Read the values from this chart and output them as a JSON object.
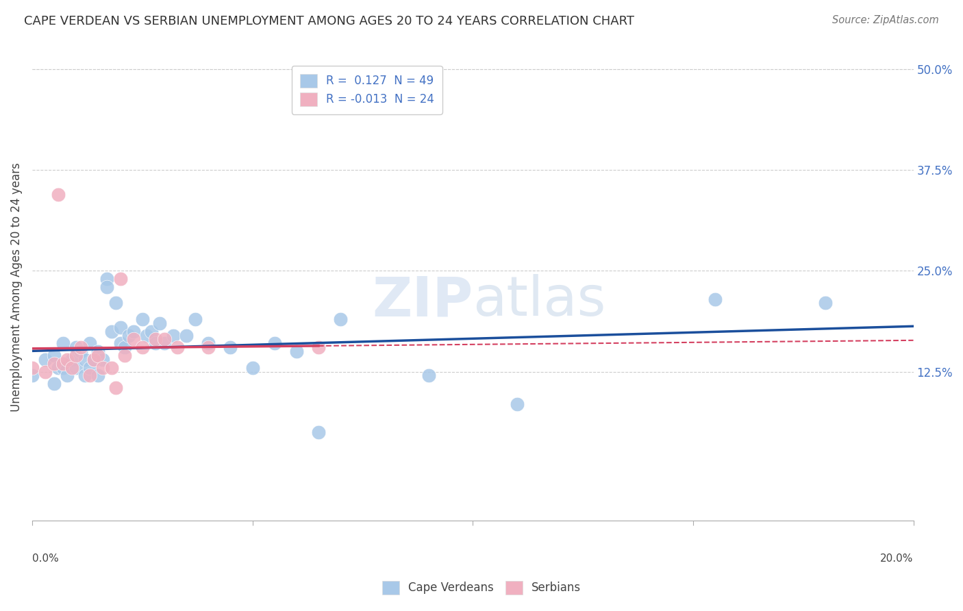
{
  "title": "CAPE VERDEAN VS SERBIAN UNEMPLOYMENT AMONG AGES 20 TO 24 YEARS CORRELATION CHART",
  "source": "Source: ZipAtlas.com",
  "ylabel": "Unemployment Among Ages 20 to 24 years",
  "xmin": 0.0,
  "xmax": 0.2,
  "ymin": -0.06,
  "ymax": 0.52,
  "yticks": [
    0.125,
    0.25,
    0.375,
    0.5
  ],
  "ytick_labels": [
    "12.5%",
    "25.0%",
    "37.5%",
    "50.0%"
  ],
  "blue_color": "#A8C8E8",
  "pink_color": "#F0B0C0",
  "line_blue": "#1B4F9C",
  "line_pink": "#D44060",
  "cape_verdean_x": [
    0.0,
    0.003,
    0.005,
    0.005,
    0.006,
    0.007,
    0.007,
    0.008,
    0.009,
    0.01,
    0.01,
    0.011,
    0.012,
    0.012,
    0.013,
    0.013,
    0.014,
    0.015,
    0.015,
    0.016,
    0.017,
    0.017,
    0.018,
    0.019,
    0.02,
    0.02,
    0.021,
    0.022,
    0.023,
    0.025,
    0.026,
    0.027,
    0.028,
    0.029,
    0.03,
    0.032,
    0.035,
    0.037,
    0.04,
    0.045,
    0.05,
    0.055,
    0.06,
    0.065,
    0.07,
    0.09,
    0.11,
    0.155,
    0.18
  ],
  "cape_verdean_y": [
    0.12,
    0.14,
    0.145,
    0.11,
    0.13,
    0.13,
    0.16,
    0.12,
    0.14,
    0.155,
    0.13,
    0.15,
    0.14,
    0.12,
    0.16,
    0.13,
    0.14,
    0.15,
    0.12,
    0.14,
    0.24,
    0.23,
    0.175,
    0.21,
    0.18,
    0.16,
    0.155,
    0.17,
    0.175,
    0.19,
    0.17,
    0.175,
    0.16,
    0.185,
    0.16,
    0.17,
    0.17,
    0.19,
    0.16,
    0.155,
    0.13,
    0.16,
    0.15,
    0.05,
    0.19,
    0.12,
    0.085,
    0.215,
    0.21
  ],
  "serbian_x": [
    0.0,
    0.003,
    0.005,
    0.006,
    0.007,
    0.008,
    0.009,
    0.01,
    0.011,
    0.013,
    0.014,
    0.015,
    0.016,
    0.018,
    0.019,
    0.02,
    0.021,
    0.023,
    0.025,
    0.028,
    0.03,
    0.033,
    0.04,
    0.065
  ],
  "serbian_y": [
    0.13,
    0.125,
    0.135,
    0.345,
    0.135,
    0.14,
    0.13,
    0.145,
    0.155,
    0.12,
    0.14,
    0.145,
    0.13,
    0.13,
    0.105,
    0.24,
    0.145,
    0.165,
    0.155,
    0.165,
    0.165,
    0.155,
    0.155,
    0.155
  ]
}
